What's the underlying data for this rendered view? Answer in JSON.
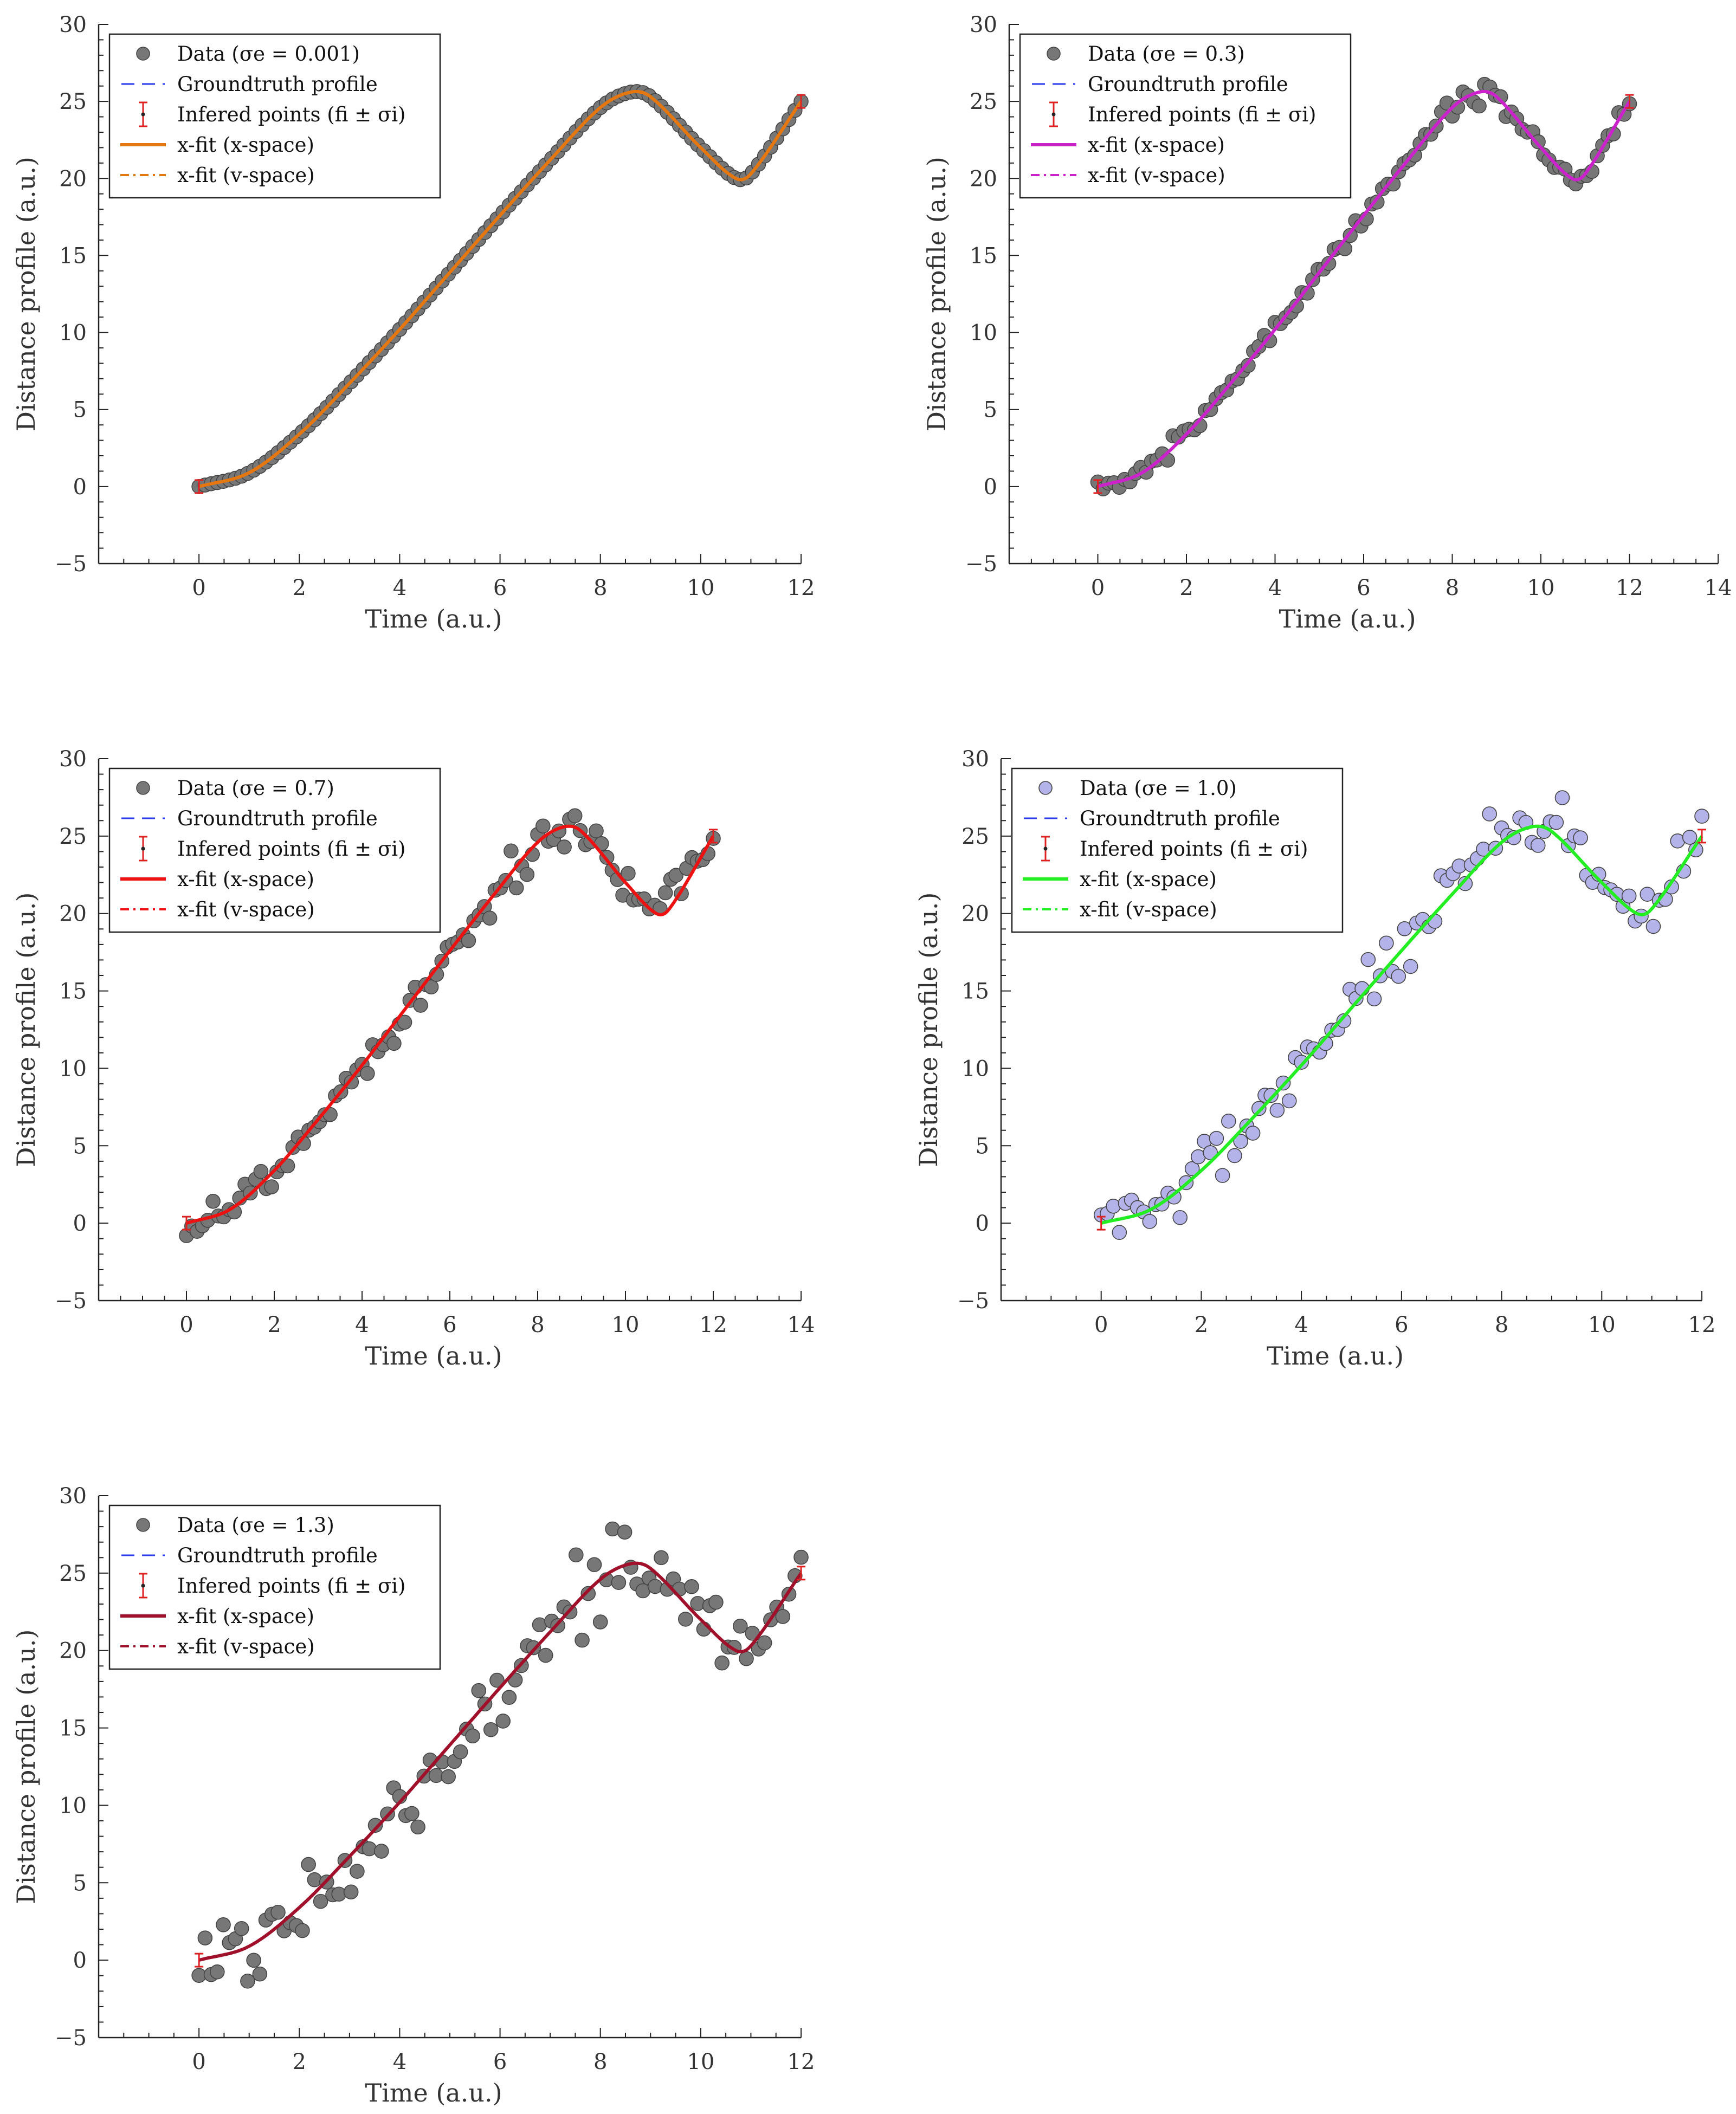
{
  "chart_data": [
    {
      "type": "scatter",
      "title": "",
      "xlabel": "Time (a.u.)",
      "ylabel": "Distance profile (a.u.)",
      "xlim": [
        -2,
        12
      ],
      "ylim": [
        -5,
        30
      ],
      "xticks": [
        0,
        2,
        4,
        6,
        8,
        10,
        12
      ],
      "yticks": [
        -5,
        0,
        5,
        10,
        15,
        20,
        25,
        30
      ],
      "sigma_e": 0.001,
      "fit_color": "#e6770f",
      "data_color": "#777777",
      "legend": {
        "position": "top-left",
        "entries": [
          "Data (σe = 0.001)",
          "Groundtruth profile",
          "Infered points (fi ± σi)",
          "x-fit (x-space)",
          "x-fit (v-space)"
        ]
      }
    },
    {
      "type": "scatter",
      "title": "",
      "xlabel": "Time (a.u.)",
      "ylabel": "Distance profile (a.u.)",
      "xlim": [
        -2,
        14
      ],
      "ylim": [
        -5,
        30
      ],
      "xticks": [
        0,
        2,
        4,
        6,
        8,
        10,
        12,
        14
      ],
      "yticks": [
        -5,
        0,
        5,
        10,
        15,
        20,
        25,
        30
      ],
      "sigma_e": 0.3,
      "fit_color": "#cc22cc",
      "data_color": "#777777",
      "legend": {
        "position": "top-left",
        "entries": [
          "Data (σe = 0.3)",
          "Groundtruth profile",
          "Infered points (fi ± σi)",
          "x-fit (x-space)",
          "x-fit (v-space)"
        ]
      }
    },
    {
      "type": "scatter",
      "title": "",
      "xlabel": "Time (a.u.)",
      "ylabel": "Distance profile (a.u.)",
      "xlim": [
        -2,
        14
      ],
      "ylim": [
        -5,
        30
      ],
      "xticks": [
        0,
        2,
        4,
        6,
        8,
        10,
        12,
        14
      ],
      "yticks": [
        -5,
        0,
        5,
        10,
        15,
        20,
        25,
        30
      ],
      "sigma_e": 0.7,
      "fit_color": "#ee1111",
      "data_color": "#777777",
      "legend": {
        "position": "top-left",
        "entries": [
          "Data (σe = 0.7)",
          "Groundtruth profile",
          "Infered points (fi ± σi)",
          "x-fit (x-space)",
          "x-fit (v-space)"
        ]
      }
    },
    {
      "type": "scatter",
      "title": "",
      "xlabel": "Time (a.u.)",
      "ylabel": "Distance profile (a.u.)",
      "xlim": [
        -2,
        12
      ],
      "ylim": [
        -5,
        30
      ],
      "xticks": [
        0,
        2,
        4,
        6,
        8,
        10,
        12
      ],
      "yticks": [
        -5,
        0,
        5,
        10,
        15,
        20,
        25,
        30
      ],
      "sigma_e": 1.0,
      "fit_color": "#22ee22",
      "data_color": "#b3b3ea",
      "legend": {
        "position": "top-left",
        "entries": [
          "Data (σe = 1.0)",
          "Groundtruth profile",
          "Infered points (fi ± σi)",
          "x-fit (x-space)",
          "x-fit (v-space)"
        ]
      }
    },
    {
      "type": "scatter",
      "title": "",
      "xlabel": "Time (a.u.)",
      "ylabel": "Distance profile (a.u.)",
      "xlim": [
        -2,
        12
      ],
      "ylim": [
        -5,
        30
      ],
      "xticks": [
        0,
        2,
        4,
        6,
        8,
        10,
        12
      ],
      "yticks": [
        -5,
        0,
        5,
        10,
        15,
        20,
        25,
        30
      ],
      "sigma_e": 1.3,
      "fit_color": "#a0102a",
      "data_color": "#777777",
      "legend": {
        "position": "top-left",
        "entries": [
          "Data (σe = 1.3)",
          "Groundtruth profile",
          "Infered points (fi ± σi)",
          "x-fit (x-space)",
          "x-fit (v-space)"
        ]
      }
    }
  ],
  "groundtruth_color": "#2a3aee",
  "infered_color": "#dd2222",
  "curve": {
    "t_start": 0,
    "t_end": 12,
    "n_points": 100,
    "groundtruth_values": [
      [
        0,
        0
      ],
      [
        1,
        0.9
      ],
      [
        2,
        3.4
      ],
      [
        3,
        6.7
      ],
      [
        4,
        10.2
      ],
      [
        5,
        13.9
      ],
      [
        6,
        17.6
      ],
      [
        7,
        21.2
      ],
      [
        8,
        24.6
      ],
      [
        8.6,
        25.6
      ],
      [
        9,
        25.3
      ],
      [
        10,
        22.0
      ],
      [
        10.7,
        20.0
      ],
      [
        11,
        20.3
      ],
      [
        12,
        25.0
      ]
    ]
  }
}
